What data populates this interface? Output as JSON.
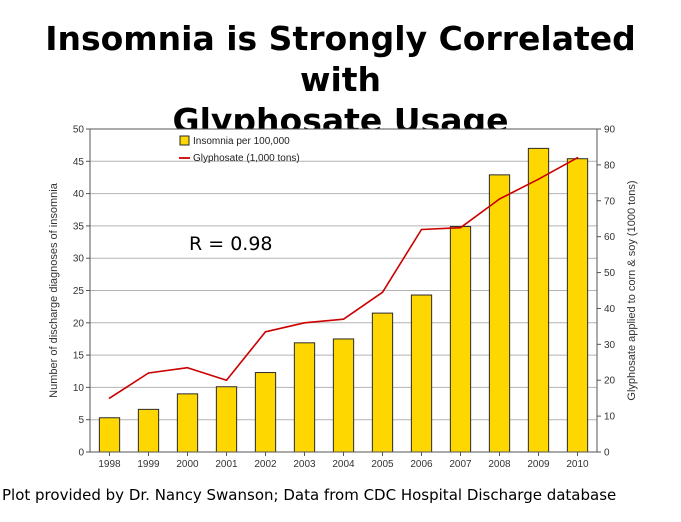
{
  "slide": {
    "title_line1": "Insomnia is Strongly Correlated with",
    "title_line2": "Glyphosate Usage",
    "footer": "Plot provided by Dr. Nancy Swanson; Data from CDC Hospital Discharge database",
    "annotation": "R = 0.98"
  },
  "chart_data": {
    "type": "bar",
    "title": "Insomnia is Strongly Correlated with Glyphosate Usage",
    "categories": [
      "1998",
      "1999",
      "2000",
      "2001",
      "2002",
      "2003",
      "2004",
      "2005",
      "2006",
      "2007",
      "2008",
      "2009",
      "2010"
    ],
    "series": [
      {
        "name": "Insomnia per 100,000",
        "type": "bar",
        "axis": "left",
        "color": "#ffd700",
        "values": [
          5.3,
          6.6,
          9.0,
          10.1,
          12.3,
          16.9,
          17.5,
          21.5,
          24.3,
          34.9,
          42.9,
          47.0,
          45.4
        ]
      },
      {
        "name": "Glyphosate (1,000 tons)",
        "type": "line",
        "axis": "right",
        "color": "#cc0000",
        "values": [
          15,
          22,
          23.5,
          20,
          33.5,
          36,
          37,
          44.5,
          62,
          62.5,
          70.5,
          76,
          82
        ]
      }
    ],
    "ylabel": "Number of discharge diagnoses of insomnia",
    "y2label": "Glyphosate applied to corn & soy (1000 tons)",
    "xlabel": "",
    "ylim": [
      0,
      50
    ],
    "y2lim": [
      0,
      90
    ],
    "yticks": [
      0,
      5,
      10,
      15,
      20,
      25,
      30,
      35,
      40,
      45,
      50
    ],
    "y2ticks": [
      0,
      10,
      20,
      30,
      40,
      50,
      60,
      70,
      80,
      90
    ],
    "legend": "top-left",
    "grid": true,
    "annotations": [
      "R = 0.98"
    ]
  }
}
